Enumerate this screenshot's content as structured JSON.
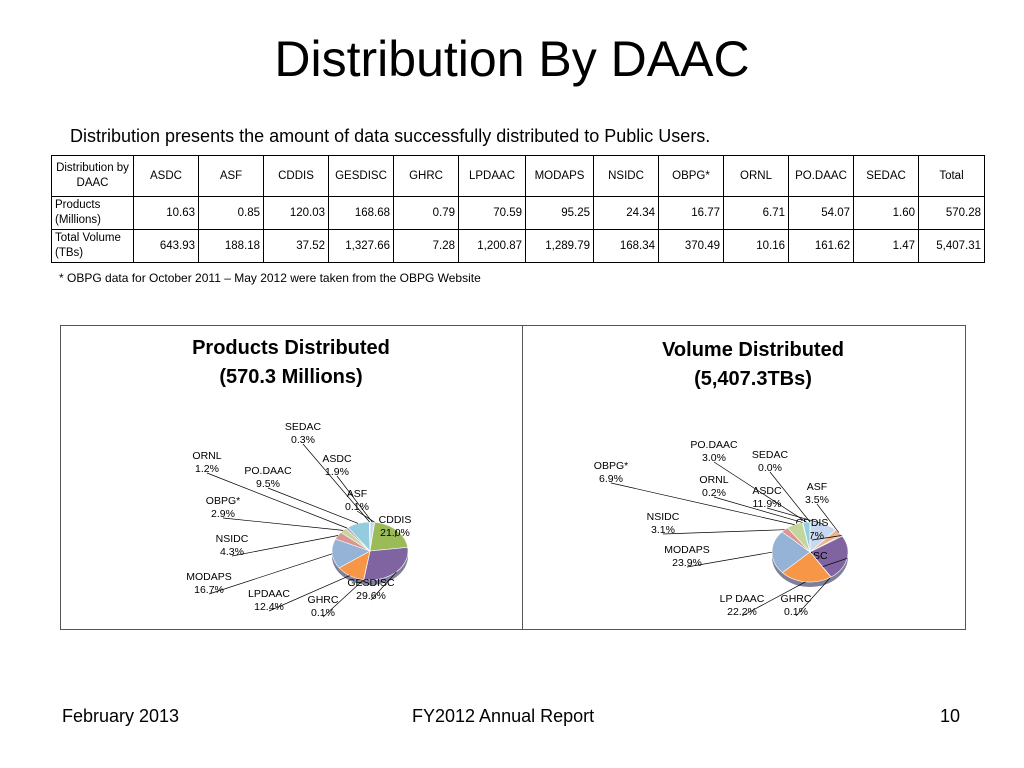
{
  "slide": {
    "title": "Distribution By DAAC",
    "subtitle": "Distribution presents the amount of data successfully distributed to Public Users.",
    "footnote": "* OBPG data for October 2011 – May 2012 were taken from the OBPG Website",
    "footer": {
      "left": "February 2013",
      "center": "FY2012 Annual Report",
      "right": "10"
    }
  },
  "table": {
    "header": [
      "Distribution by DAAC",
      "ASDC",
      "ASF",
      "CDDIS",
      "GESDISC",
      "GHRC",
      "LPDAAC",
      "MODAPS",
      "NSIDC",
      "OBPG*",
      "ORNL",
      "PO.DAAC",
      "SEDAC",
      "Total"
    ],
    "rows": [
      {
        "label": "Products (Millions)",
        "values": [
          "10.63",
          "0.85",
          "120.03",
          "168.68",
          "0.79",
          "70.59",
          "95.25",
          "24.34",
          "16.77",
          "6.71",
          "54.07",
          "1.60",
          "570.28"
        ]
      },
      {
        "label": "Total Volume (TBs)",
        "values": [
          "643.93",
          "188.18",
          "37.52",
          "1,327.66",
          "7.28",
          "1,200.87",
          "1,289.79",
          "168.34",
          "370.49",
          "10.16",
          "161.62",
          "1.47",
          "5,407.31"
        ]
      }
    ]
  },
  "colors": {
    "ASDC": "#c6d9f1",
    "ASF": "#f2b38c",
    "CDDIS": "#9bbb59",
    "GESDISC": "#8064a2",
    "GHRC": "#4bacc6",
    "LPDAAC": "#f79646",
    "MODAPS": "#95b3d7",
    "NSIDC": "#d99694",
    "OBPG": "#c3d69b",
    "ORNL": "#b3a2c7",
    "PO.DAAC": "#93cddd",
    "SEDAC": "#fac08f"
  },
  "chart_data": [
    {
      "type": "pie",
      "title": "Products Distributed",
      "subtitle": "(570.3 Millions)",
      "series": [
        {
          "key": "ASDC",
          "name": "ASDC",
          "value": 1.9,
          "label": "1.9%"
        },
        {
          "key": "ASF",
          "name": "ASF",
          "value": 0.1,
          "label": "0.1%"
        },
        {
          "key": "CDDIS",
          "name": "CDDIS",
          "value": 21.0,
          "label": "21.0%"
        },
        {
          "key": "GESDISC",
          "name": "GESDISC",
          "value": 29.6,
          "label": "29.6%"
        },
        {
          "key": "GHRC",
          "name": "GHRC",
          "value": 0.1,
          "label": "0.1%"
        },
        {
          "key": "LPDAAC",
          "name": "LPDAAC",
          "value": 12.4,
          "label": "12.4%"
        },
        {
          "key": "MODAPS",
          "name": "MODAPS",
          "value": 16.7,
          "label": "16.7%"
        },
        {
          "key": "NSIDC",
          "name": "NSIDC",
          "value": 4.3,
          "label": "4.3%"
        },
        {
          "key": "OBPG",
          "name": "OBPG*",
          "value": 2.9,
          "label": "2.9%"
        },
        {
          "key": "ORNL",
          "name": "ORNL",
          "value": 1.2,
          "label": "1.2%"
        },
        {
          "key": "PO.DAAC",
          "name": "PO.DAAC",
          "value": 9.5,
          "label": "9.5%"
        },
        {
          "key": "SEDAC",
          "name": "SEDAC",
          "value": 0.3,
          "label": "0.3%"
        }
      ]
    },
    {
      "type": "pie",
      "title": "Volume Distributed",
      "subtitle": "(5,407.3TBs)",
      "series": [
        {
          "key": "ASDC",
          "name": "ASDC",
          "value": 11.9,
          "label": "11.9%"
        },
        {
          "key": "ASF",
          "name": "ASF",
          "value": 3.5,
          "label": "3.5%"
        },
        {
          "key": "CDDIS",
          "name": "CDDIS",
          "value": 0.7,
          "label": "0.7%"
        },
        {
          "key": "GESDISC",
          "name": "GESDISC",
          "value": 24.6,
          "label": "24.6%"
        },
        {
          "key": "GHRC",
          "name": "GHRC",
          "value": 0.1,
          "label": "0.1%"
        },
        {
          "key": "LPDAAC",
          "name": "LP DAAC",
          "value": 22.2,
          "label": "22.2%"
        },
        {
          "key": "MODAPS",
          "name": "MODAPS",
          "value": 23.9,
          "label": "23.9%"
        },
        {
          "key": "NSIDC",
          "name": "NSIDC",
          "value": 3.1,
          "label": "3.1%"
        },
        {
          "key": "OBPG",
          "name": "OBPG*",
          "value": 6.9,
          "label": "6.9%"
        },
        {
          "key": "ORNL",
          "name": "ORNL",
          "value": 0.2,
          "label": "0.2%"
        },
        {
          "key": "PO.DAAC",
          "name": "PO.DAAC",
          "value": 3.0,
          "label": "3.0%"
        },
        {
          "key": "SEDAC",
          "name": "SEDAC",
          "value": 0.0,
          "label": "0.0%"
        }
      ]
    }
  ]
}
